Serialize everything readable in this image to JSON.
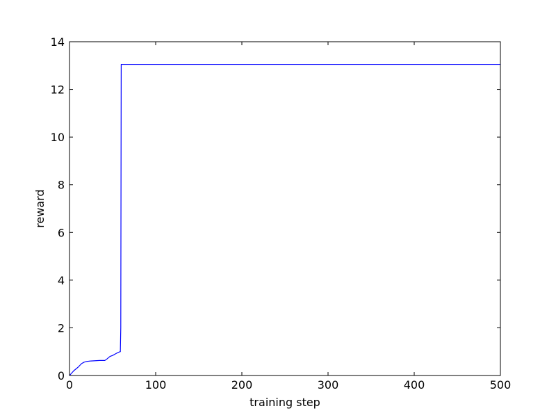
{
  "chart_data": {
    "type": "line",
    "title": "",
    "xlabel": "training step",
    "ylabel": "reward",
    "xlim": [
      0,
      500
    ],
    "ylim": [
      0,
      14
    ],
    "xticks": [
      0,
      100,
      200,
      300,
      400,
      500
    ],
    "yticks": [
      0,
      2,
      4,
      6,
      8,
      10,
      12,
      14
    ],
    "grid": false,
    "legend": "none",
    "series": [
      {
        "color": "#0000ff",
        "points": [
          [
            0,
            0.0
          ],
          [
            2,
            0.08
          ],
          [
            5,
            0.2
          ],
          [
            10,
            0.35
          ],
          [
            14,
            0.5
          ],
          [
            17,
            0.56
          ],
          [
            20,
            0.59
          ],
          [
            25,
            0.61
          ],
          [
            30,
            0.62
          ],
          [
            35,
            0.63
          ],
          [
            41,
            0.63
          ],
          [
            43,
            0.68
          ],
          [
            47,
            0.8
          ],
          [
            50,
            0.84
          ],
          [
            53,
            0.9
          ],
          [
            56,
            0.96
          ],
          [
            58,
            0.99
          ],
          [
            59,
            1.0
          ],
          [
            59.5,
            2.0
          ],
          [
            60,
            13.05
          ],
          [
            500,
            13.05
          ]
        ]
      }
    ]
  }
}
